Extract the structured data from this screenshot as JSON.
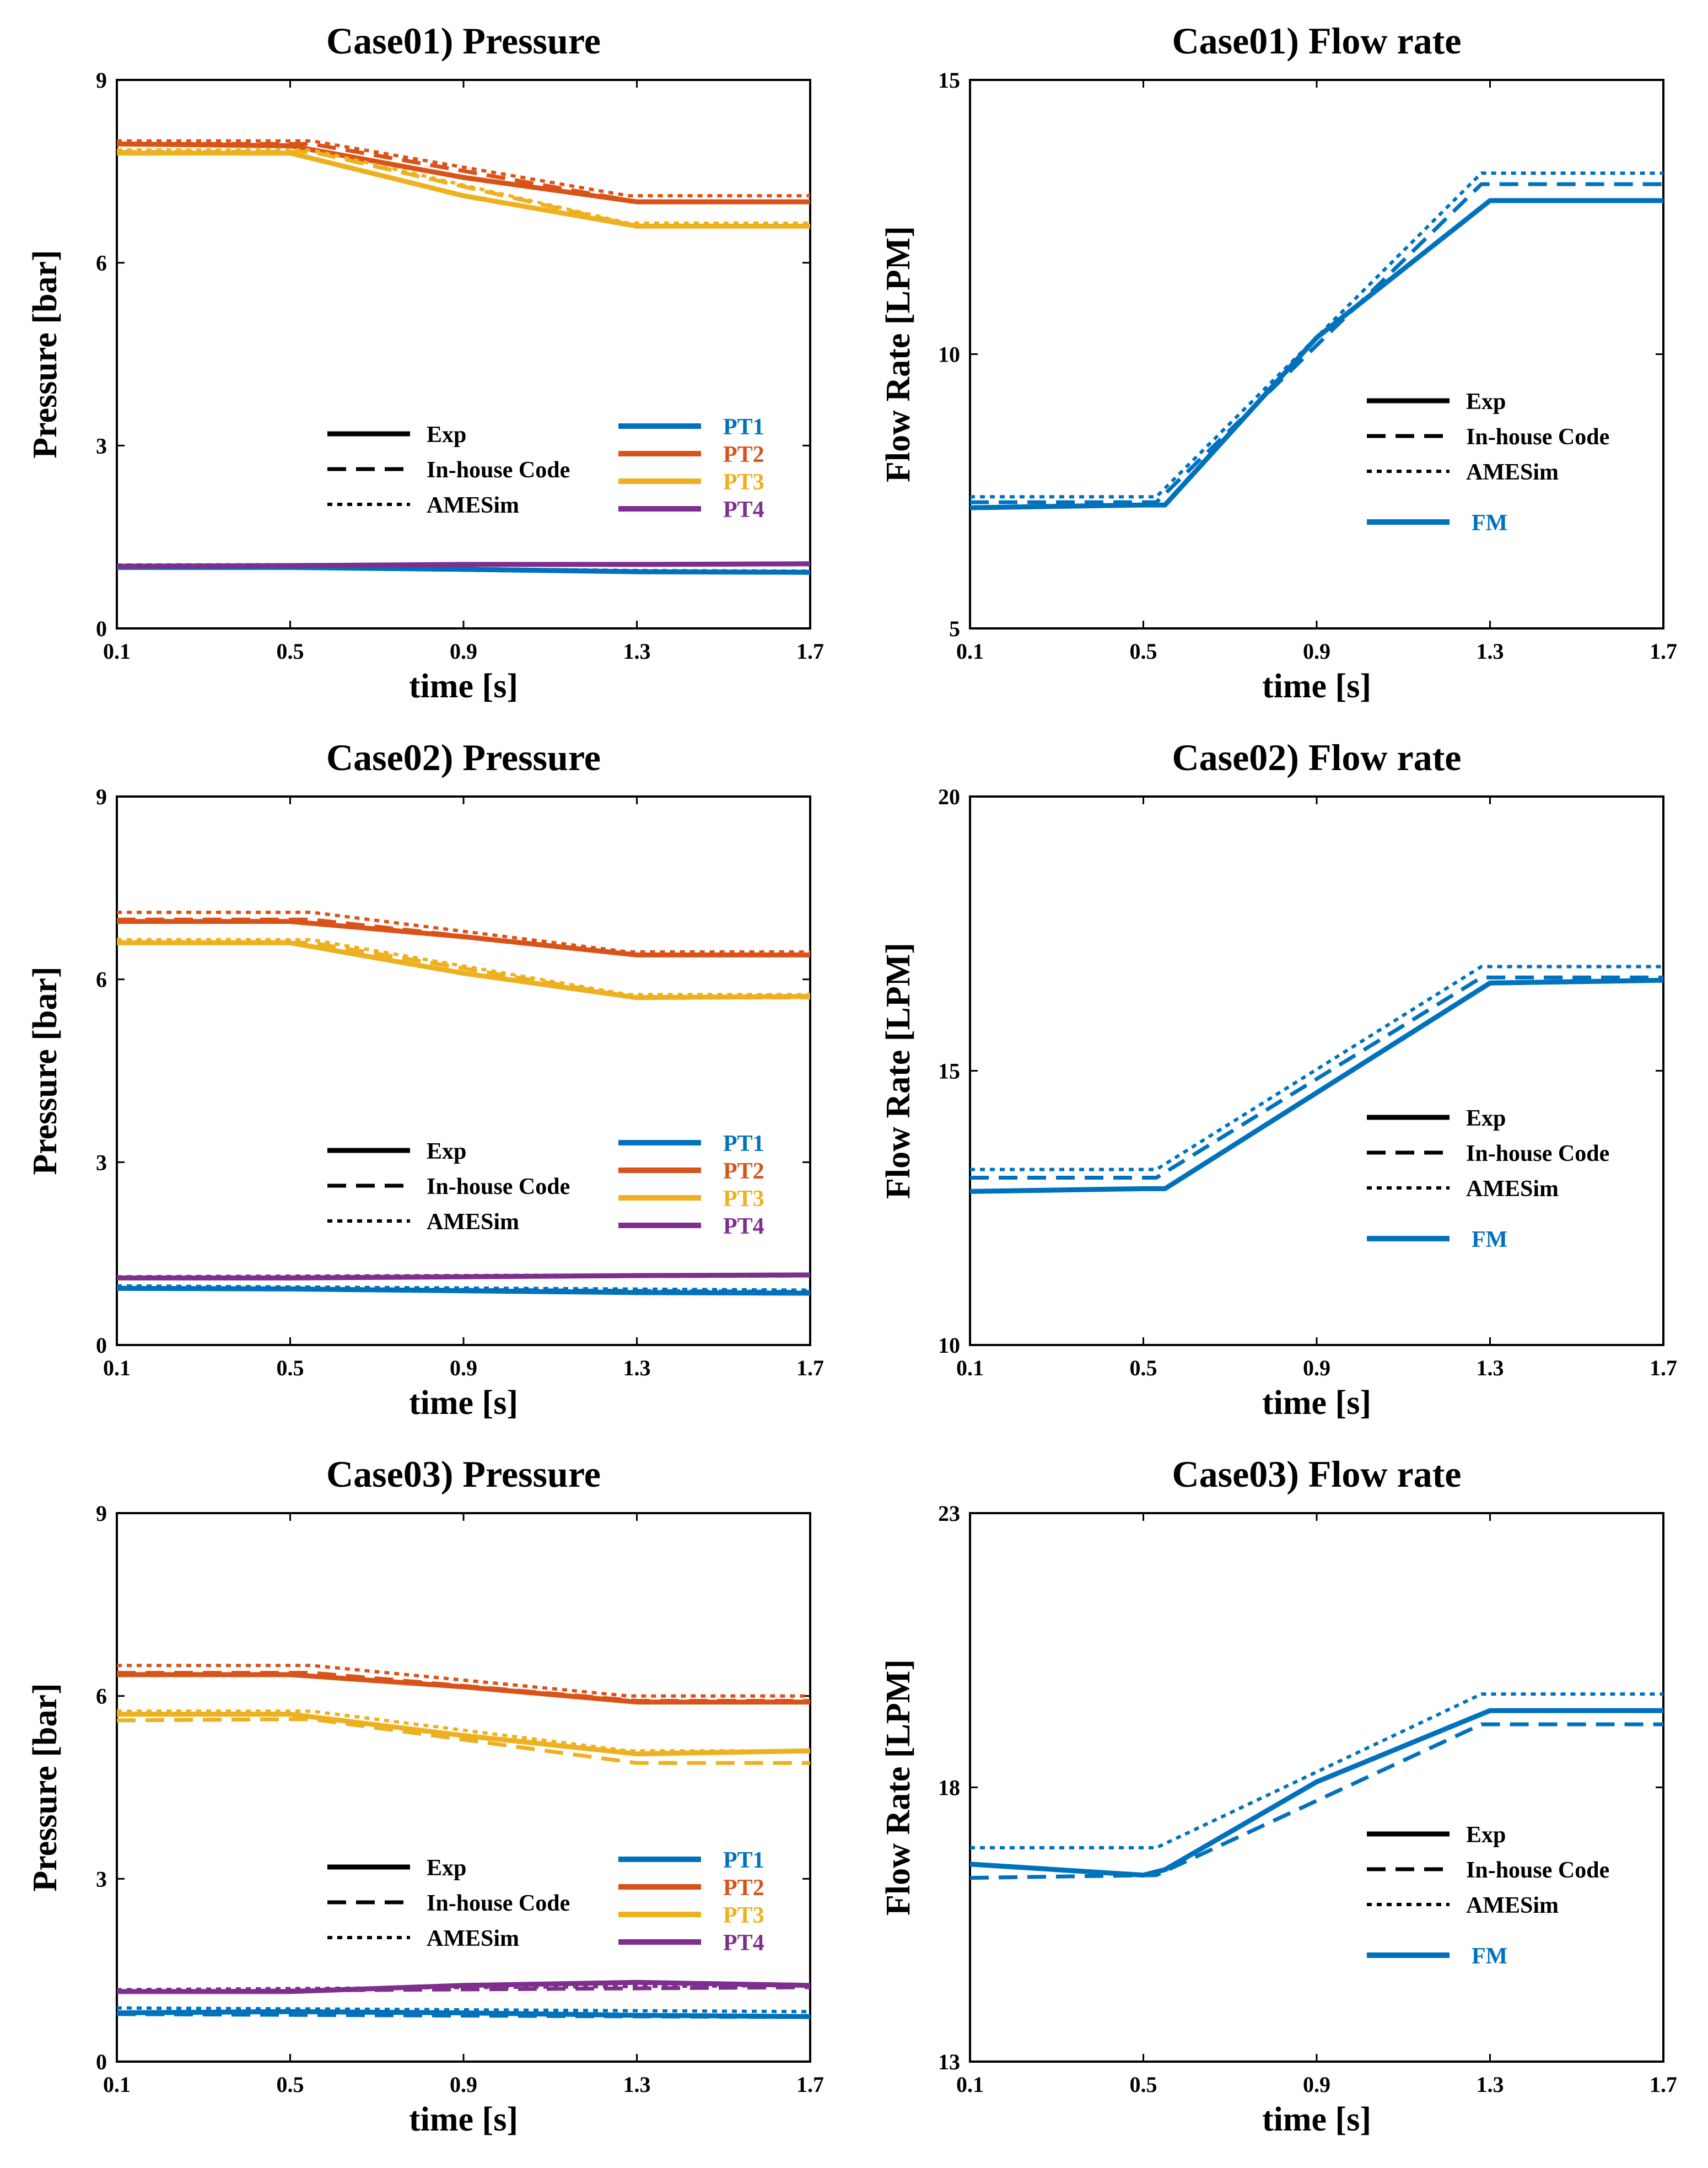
{
  "colors": {
    "PT1": "#0072BD",
    "PT2": "#D95319",
    "PT3": "#EDB120",
    "PT4": "#7E2F8E",
    "FM": "#0072BD"
  },
  "line_styles": [
    "Exp",
    "In-house Code",
    "AMESim"
  ],
  "chart_data": [
    {
      "id": "case01-pressure",
      "type": "line",
      "title": "Case01) Pressure",
      "xlabel": "time [s]",
      "ylabel": "Pressure [bar]",
      "xlim": [
        0.1,
        1.7
      ],
      "ylim": [
        0,
        9
      ],
      "xticks": [
        "0.1",
        "0.5",
        "0.9",
        "1.3",
        "1.7"
      ],
      "yticks": [
        "0",
        "3",
        "6",
        "9"
      ],
      "style_legend": [
        "Exp",
        "In-house Code",
        "AMESim"
      ],
      "color_legend": [
        "PT1",
        "PT2",
        "PT3",
        "PT4"
      ],
      "series": [
        {
          "name": "PT1",
          "exp": {
            "x": [
              0.1,
              0.5,
              0.9,
              1.3,
              1.7
            ],
            "y": [
              1.0,
              1.0,
              0.97,
              0.93,
              0.92
            ]
          },
          "inhouse": {
            "x": [
              0.1,
              0.5,
              0.9,
              1.3,
              1.7
            ],
            "y": [
              1.0,
              1.0,
              0.96,
              0.93,
              0.92
            ]
          },
          "amesim": {
            "x": [
              0.1,
              0.5,
              0.9,
              1.3,
              1.7
            ],
            "y": [
              1.02,
              1.02,
              0.98,
              0.95,
              0.94
            ]
          }
        },
        {
          "name": "PT2",
          "exp": {
            "x": [
              0.1,
              0.5,
              0.9,
              1.3,
              1.7
            ],
            "y": [
              7.95,
              7.92,
              7.4,
              7.0,
              7.0
            ]
          },
          "inhouse": {
            "x": [
              0.1,
              0.55,
              1.3,
              1.7
            ],
            "y": [
              7.95,
              7.95,
              7.0,
              7.0
            ]
          },
          "amesim": {
            "x": [
              0.1,
              0.55,
              1.28,
              1.7
            ],
            "y": [
              8.0,
              8.0,
              7.1,
              7.1
            ]
          }
        },
        {
          "name": "PT3",
          "exp": {
            "x": [
              0.1,
              0.5,
              0.9,
              1.3,
              1.7
            ],
            "y": [
              7.8,
              7.8,
              7.1,
              6.6,
              6.6
            ]
          },
          "inhouse": {
            "x": [
              0.1,
              0.55,
              1.3,
              1.7
            ],
            "y": [
              7.82,
              7.82,
              6.6,
              6.6
            ]
          },
          "amesim": {
            "x": [
              0.1,
              0.55,
              1.28,
              1.7
            ],
            "y": [
              7.85,
              7.85,
              6.65,
              6.65
            ]
          }
        },
        {
          "name": "PT4",
          "exp": {
            "x": [
              0.1,
              0.5,
              0.9,
              1.3,
              1.7
            ],
            "y": [
              1.02,
              1.03,
              1.05,
              1.05,
              1.06
            ]
          },
          "inhouse": {
            "x": [
              0.1,
              1.7
            ],
            "y": [
              1.03,
              1.05
            ]
          },
          "amesim": {
            "x": [
              0.1,
              1.7
            ],
            "y": [
              1.04,
              1.06
            ]
          }
        }
      ]
    },
    {
      "id": "case01-flow",
      "type": "line",
      "title": "Case01) Flow rate",
      "xlabel": "time [s]",
      "ylabel": "Flow Rate [LPM]",
      "xlim": [
        0.1,
        1.7
      ],
      "ylim": [
        5,
        15
      ],
      "xticks": [
        "0.1",
        "0.5",
        "0.9",
        "1.3",
        "1.7"
      ],
      "yticks": [
        "5",
        "10",
        "15"
      ],
      "style_legend": [
        "Exp",
        "In-house Code",
        "AMESim"
      ],
      "color_legend": [
        "FM"
      ],
      "series": [
        {
          "name": "FM",
          "exp": {
            "x": [
              0.1,
              0.5,
              0.55,
              0.9,
              1.3,
              1.7
            ],
            "y": [
              7.2,
              7.25,
              7.25,
              10.3,
              12.8,
              12.8
            ]
          },
          "inhouse": {
            "x": [
              0.1,
              0.53,
              1.28,
              1.7
            ],
            "y": [
              7.3,
              7.3,
              13.1,
              13.1
            ]
          },
          "amesim": {
            "x": [
              0.1,
              0.53,
              1.28,
              1.7
            ],
            "y": [
              7.4,
              7.4,
              13.3,
              13.3
            ]
          }
        }
      ]
    },
    {
      "id": "case02-pressure",
      "type": "line",
      "title": "Case02) Pressure",
      "xlabel": "time [s]",
      "ylabel": "Pressure [bar]",
      "xlim": [
        0.1,
        1.7
      ],
      "ylim": [
        0,
        9
      ],
      "xticks": [
        "0.1",
        "0.5",
        "0.9",
        "1.3",
        "1.7"
      ],
      "yticks": [
        "0",
        "3",
        "6",
        "9"
      ],
      "style_legend": [
        "Exp",
        "In-house Code",
        "AMESim"
      ],
      "color_legend": [
        "PT1",
        "PT2",
        "PT3",
        "PT4"
      ],
      "series": [
        {
          "name": "PT1",
          "exp": {
            "x": [
              0.1,
              0.5,
              0.9,
              1.3,
              1.7
            ],
            "y": [
              0.93,
              0.92,
              0.89,
              0.86,
              0.85
            ]
          },
          "inhouse": {
            "x": [
              0.1,
              1.7
            ],
            "y": [
              0.94,
              0.87
            ]
          },
          "amesim": {
            "x": [
              0.1,
              1.7
            ],
            "y": [
              0.97,
              0.9
            ]
          }
        },
        {
          "name": "PT2",
          "exp": {
            "x": [
              0.1,
              0.5,
              0.9,
              1.3,
              1.7
            ],
            "y": [
              6.95,
              6.95,
              6.7,
              6.4,
              6.4
            ]
          },
          "inhouse": {
            "x": [
              0.1,
              0.55,
              1.3,
              1.7
            ],
            "y": [
              6.98,
              6.98,
              6.4,
              6.4
            ]
          },
          "amesim": {
            "x": [
              0.1,
              0.55,
              1.28,
              1.7
            ],
            "y": [
              7.1,
              7.1,
              6.45,
              6.45
            ]
          }
        },
        {
          "name": "PT3",
          "exp": {
            "x": [
              0.1,
              0.5,
              0.9,
              1.3,
              1.7
            ],
            "y": [
              6.6,
              6.6,
              6.1,
              5.7,
              5.72
            ]
          },
          "inhouse": {
            "x": [
              0.1,
              0.55,
              1.3,
              1.7
            ],
            "y": [
              6.6,
              6.6,
              5.7,
              5.7
            ]
          },
          "amesim": {
            "x": [
              0.1,
              0.55,
              1.28,
              1.7
            ],
            "y": [
              6.65,
              6.65,
              5.75,
              5.75
            ]
          }
        },
        {
          "name": "PT4",
          "exp": {
            "x": [
              0.1,
              0.5,
              0.9,
              1.3,
              1.7
            ],
            "y": [
              1.1,
              1.1,
              1.12,
              1.14,
              1.15
            ]
          },
          "inhouse": {
            "x": [
              0.1,
              1.7
            ],
            "y": [
              1.1,
              1.14
            ]
          },
          "amesim": {
            "x": [
              0.1,
              1.7
            ],
            "y": [
              1.12,
              1.16
            ]
          }
        }
      ]
    },
    {
      "id": "case02-flow",
      "type": "line",
      "title": "Case02) Flow rate",
      "xlabel": "time [s]",
      "ylabel": "Flow Rate [LPM]",
      "xlim": [
        0.1,
        1.7
      ],
      "ylim": [
        10,
        20
      ],
      "xticks": [
        "0.1",
        "0.5",
        "0.9",
        "1.3",
        "1.7"
      ],
      "yticks": [
        "10",
        "15",
        "20"
      ],
      "style_legend": [
        "Exp",
        "In-house Code",
        "AMESim"
      ],
      "color_legend": [
        "FM"
      ],
      "series": [
        {
          "name": "FM",
          "exp": {
            "x": [
              0.1,
              0.5,
              0.55,
              0.9,
              1.3,
              1.7
            ],
            "y": [
              12.8,
              12.85,
              12.85,
              14.6,
              16.6,
              16.65
            ]
          },
          "inhouse": {
            "x": [
              0.1,
              0.53,
              1.28,
              1.7
            ],
            "y": [
              13.05,
              13.05,
              16.7,
              16.7
            ]
          },
          "amesim": {
            "x": [
              0.1,
              0.53,
              1.28,
              1.7
            ],
            "y": [
              13.2,
              13.2,
              16.9,
              16.9
            ]
          }
        }
      ]
    },
    {
      "id": "case03-pressure",
      "type": "line",
      "title": "Case03) Pressure",
      "xlabel": "time [s]",
      "ylabel": "Pressure [bar]",
      "xlim": [
        0.1,
        1.7
      ],
      "ylim": [
        0,
        9
      ],
      "xticks": [
        "0.1",
        "0.5",
        "0.9",
        "1.3",
        "1.7"
      ],
      "yticks": [
        "0",
        "3",
        "6",
        "9"
      ],
      "style_legend": [
        "Exp",
        "In-house Code",
        "AMESim"
      ],
      "color_legend": [
        "PT1",
        "PT2",
        "PT3",
        "PT4"
      ],
      "series": [
        {
          "name": "PT1",
          "exp": {
            "x": [
              0.1,
              0.5,
              0.9,
              1.3,
              1.7
            ],
            "y": [
              0.8,
              0.82,
              0.8,
              0.76,
              0.74
            ]
          },
          "inhouse": {
            "x": [
              0.1,
              1.7
            ],
            "y": [
              0.78,
              0.73
            ]
          },
          "amesim": {
            "x": [
              0.1,
              1.7
            ],
            "y": [
              0.88,
              0.82
            ]
          }
        },
        {
          "name": "PT2",
          "exp": {
            "x": [
              0.1,
              0.5,
              0.9,
              1.3,
              1.7
            ],
            "y": [
              6.35,
              6.35,
              6.15,
              5.9,
              5.9
            ]
          },
          "inhouse": {
            "x": [
              0.1,
              0.55,
              1.3,
              1.7
            ],
            "y": [
              6.38,
              6.38,
              5.92,
              5.92
            ]
          },
          "amesim": {
            "x": [
              0.1,
              0.55,
              1.28,
              1.7
            ],
            "y": [
              6.5,
              6.5,
              6.0,
              6.0
            ]
          }
        },
        {
          "name": "PT3",
          "exp": {
            "x": [
              0.1,
              0.5,
              0.9,
              1.3,
              1.7
            ],
            "y": [
              5.7,
              5.7,
              5.35,
              5.05,
              5.1
            ]
          },
          "inhouse": {
            "x": [
              0.1,
              0.55,
              1.3,
              1.7
            ],
            "y": [
              5.6,
              5.62,
              4.9,
              4.9
            ]
          },
          "amesim": {
            "x": [
              0.1,
              0.55,
              1.28,
              1.7
            ],
            "y": [
              5.75,
              5.75,
              5.1,
              5.1
            ]
          }
        },
        {
          "name": "PT4",
          "exp": {
            "x": [
              0.1,
              0.5,
              0.9,
              1.3,
              1.7
            ],
            "y": [
              1.15,
              1.15,
              1.25,
              1.3,
              1.25
            ]
          },
          "inhouse": {
            "x": [
              0.1,
              1.7
            ],
            "y": [
              1.15,
              1.22
            ]
          },
          "amesim": {
            "x": [
              0.1,
              1.7
            ],
            "y": [
              1.18,
              1.25
            ]
          }
        }
      ]
    },
    {
      "id": "case03-flow",
      "type": "line",
      "title": "Case03) Flow rate",
      "xlabel": "time [s]",
      "ylabel": "Flow Rate [LPM]",
      "xlim": [
        0.1,
        1.7
      ],
      "ylim": [
        13,
        23
      ],
      "xticks": [
        "0.1",
        "0.5",
        "0.9",
        "1.3",
        "1.7"
      ],
      "yticks": [
        "13",
        "18",
        "23"
      ],
      "style_legend": [
        "Exp",
        "In-house Code",
        "AMESim"
      ],
      "color_legend": [
        "FM"
      ],
      "series": [
        {
          "name": "FM",
          "exp": {
            "x": [
              0.1,
              0.5,
              0.55,
              0.9,
              1.3,
              1.5,
              1.7
            ],
            "y": [
              16.6,
              16.4,
              16.5,
              18.1,
              19.4,
              19.4,
              19.4
            ]
          },
          "inhouse": {
            "x": [
              0.1,
              0.53,
              1.28,
              1.7
            ],
            "y": [
              16.35,
              16.4,
              19.15,
              19.15
            ]
          },
          "amesim": {
            "x": [
              0.1,
              0.53,
              1.28,
              1.7
            ],
            "y": [
              16.9,
              16.9,
              19.7,
              19.7
            ]
          }
        }
      ]
    }
  ]
}
